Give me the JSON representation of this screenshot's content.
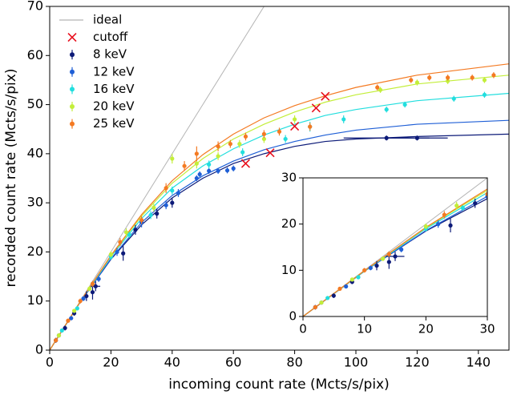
{
  "chart_data": {
    "type": "scatter",
    "xlabel": "incoming count rate (Mcts/s/pix)",
    "ylabel": "recorded count rate (Mcts/s/pix)",
    "xlim": [
      0,
      150
    ],
    "ylim": [
      0,
      70
    ],
    "xticks": [
      0,
      20,
      40,
      60,
      80,
      100,
      120,
      140
    ],
    "yticks": [
      0,
      10,
      20,
      30,
      40,
      50,
      60,
      70
    ],
    "legend": "upper left",
    "ideal": {
      "name": "ideal",
      "color": "#b4b4b4",
      "x": [
        0,
        70
      ],
      "values": [
        0,
        70
      ]
    },
    "cutoff": {
      "name": "cutoff",
      "color": "#e8101e",
      "x": [
        64,
        72,
        80,
        87,
        90
      ],
      "values": [
        38,
        40.2,
        45.6,
        49.3,
        51.7
      ]
    },
    "series": [
      {
        "name": "8 keV",
        "color": "#0c1a78",
        "x": [
          2,
          5,
          8,
          12,
          14,
          15,
          24,
          28,
          35,
          40,
          110,
          120
        ],
        "values": [
          2,
          4.5,
          7.5,
          11,
          11.8,
          13,
          19.7,
          24.5,
          27.8,
          30,
          43.2,
          43.2
        ],
        "yerr": [
          0.5,
          0.5,
          0.5,
          1,
          1.5,
          1,
          1.5,
          1,
          1,
          1,
          0.5,
          0.5
        ],
        "xerr": [
          0,
          0,
          0,
          0,
          0,
          1.5,
          0,
          0,
          0,
          0,
          14,
          10
        ],
        "fit": {
          "x": [
            0,
            10,
            20,
            30,
            40,
            50,
            60,
            70,
            80,
            90,
            100,
            120,
            150
          ],
          "values": [
            0,
            9.8,
            18.5,
            25.5,
            31,
            35,
            38,
            40,
            41.5,
            42.5,
            43,
            43.5,
            44
          ]
        }
      },
      {
        "name": "12 keV",
        "color": "#1f5fd6",
        "x": [
          3,
          7,
          11,
          16,
          22,
          30,
          38,
          42,
          48,
          49,
          52,
          55,
          58,
          60
        ],
        "values": [
          3,
          6.5,
          10.5,
          14.5,
          20,
          26,
          29.5,
          32,
          35,
          35.8,
          36.5,
          36.5,
          36.6,
          37
        ],
        "yerr": [
          0.4,
          0.4,
          0.5,
          0.6,
          0.8,
          1,
          0.8,
          0.8,
          0.6,
          0.6,
          0.6,
          0.6,
          0.6,
          0.6
        ],
        "fit": {
          "x": [
            0,
            10,
            20,
            30,
            40,
            50,
            60,
            70,
            80,
            90,
            100,
            120,
            150
          ],
          "values": [
            0,
            9.8,
            18.6,
            26,
            31.5,
            35.5,
            38.5,
            40.8,
            42.5,
            43.8,
            44.8,
            46,
            46.8
          ]
        }
      },
      {
        "name": "16 keV",
        "color": "#22dede",
        "x": [
          4,
          9,
          14,
          20,
          26,
          33,
          40,
          52,
          63,
          77,
          85,
          96,
          110,
          116,
          132,
          142
        ],
        "values": [
          4,
          8.5,
          13.5,
          19,
          23.5,
          27.5,
          32.5,
          37.8,
          40.3,
          43,
          45.5,
          47,
          49,
          50,
          51.2,
          52
        ],
        "yerr": [
          0.4,
          0.4,
          0.5,
          0.6,
          0.6,
          0.8,
          0.8,
          0.8,
          0.8,
          0.8,
          1,
          0.8,
          0.6,
          0.6,
          0.6,
          0.6
        ],
        "fit": {
          "x": [
            0,
            10,
            20,
            30,
            40,
            50,
            60,
            70,
            80,
            90,
            100,
            120,
            150
          ],
          "values": [
            0,
            9.8,
            19,
            26.8,
            33,
            37.5,
            41,
            43.8,
            46,
            47.8,
            49,
            50.8,
            52.3
          ]
        }
      },
      {
        "name": "20 keV",
        "color": "#c3ee3a",
        "x": [
          3,
          8,
          13,
          20,
          25,
          34,
          40,
          48,
          55,
          62,
          70,
          80,
          108,
          120,
          130,
          142
        ],
        "values": [
          3,
          8,
          12.5,
          19.5,
          24,
          29,
          39,
          38,
          39.5,
          42,
          43,
          47,
          53,
          54.5,
          54.8,
          55
        ],
        "yerr": [
          0.4,
          0.4,
          0.5,
          0.6,
          0.8,
          0.8,
          1,
          1,
          0.8,
          0.8,
          0.8,
          0.8,
          0.6,
          0.6,
          0.6,
          0.6
        ],
        "fit": {
          "x": [
            0,
            10,
            20,
            30,
            40,
            50,
            60,
            70,
            80,
            90,
            100,
            120,
            150
          ],
          "values": [
            0,
            9.9,
            19.2,
            27.3,
            34,
            39,
            43,
            46,
            48.5,
            50.5,
            52,
            54.2,
            56
          ]
        }
      },
      {
        "name": "25 keV",
        "color": "#f47a22",
        "x": [
          2,
          6,
          10,
          14,
          23,
          30,
          38,
          44,
          48,
          55,
          59,
          64,
          70,
          75,
          85,
          107,
          118,
          124,
          130,
          138,
          145
        ],
        "values": [
          2,
          6,
          10,
          13.5,
          22,
          26.5,
          33,
          37.5,
          40,
          41.5,
          42,
          43.5,
          44,
          44.5,
          45.5,
          53.5,
          55,
          55.5,
          55.5,
          55.5,
          56
        ],
        "yerr": [
          0.4,
          0.4,
          0.5,
          0.6,
          0.8,
          0.8,
          1,
          1,
          1.5,
          1,
          0.8,
          0.8,
          0.8,
          0.8,
          0.8,
          0.6,
          0.6,
          0.6,
          0.6,
          0.6,
          0.6
        ],
        "fit": {
          "x": [
            0,
            10,
            20,
            30,
            40,
            50,
            60,
            70,
            80,
            90,
            100,
            120,
            150
          ],
          "values": [
            0,
            9.9,
            19.3,
            27.6,
            34.5,
            39.8,
            44,
            47.3,
            49.8,
            51.8,
            53.5,
            56,
            58.3
          ]
        }
      }
    ],
    "inset": {
      "xlim": [
        0,
        30
      ],
      "ylim": [
        0,
        30
      ],
      "xticks": [
        0,
        10,
        20,
        30
      ],
      "yticks": [
        0,
        10,
        20,
        30
      ]
    }
  }
}
